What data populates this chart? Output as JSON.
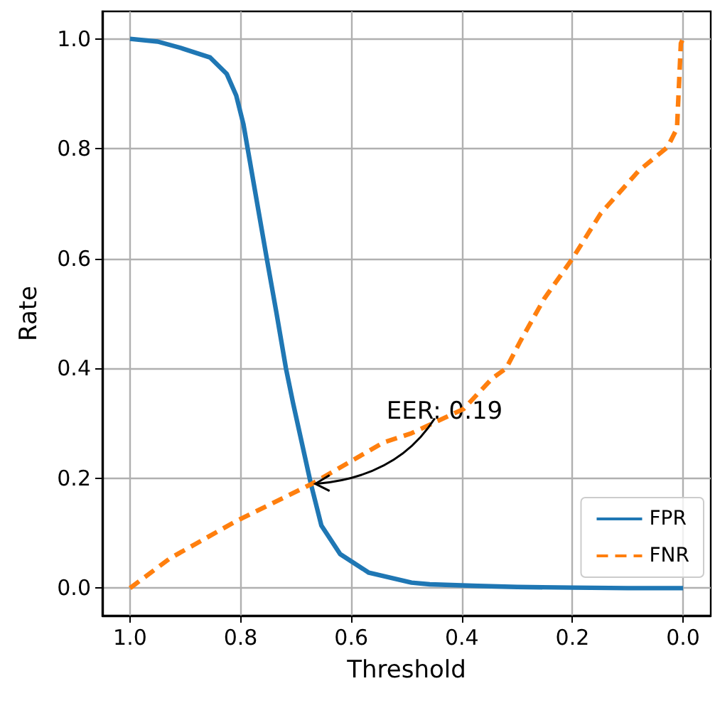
{
  "chart_data": {
    "type": "line",
    "xlabel": "Threshold",
    "ylabel": "Rate",
    "xlim": [
      1.05,
      -0.05
    ],
    "ylim": [
      -0.05,
      1.05
    ],
    "xticks": [
      {
        "value": 1,
        "label": "1.0"
      },
      {
        "value": 0.8,
        "label": "0.8"
      },
      {
        "value": 0.6,
        "label": "0.6"
      },
      {
        "value": 0.4,
        "label": "0.4"
      },
      {
        "value": 0.2,
        "label": "0.2"
      },
      {
        "value": 0,
        "label": "0.0"
      }
    ],
    "yticks": [
      {
        "value": 0,
        "label": "0.0"
      },
      {
        "value": 0.2,
        "label": "0.2"
      },
      {
        "value": 0.4,
        "label": "0.4"
      },
      {
        "value": 0.6,
        "label": "0.6"
      },
      {
        "value": 0.8,
        "label": "0.8"
      },
      {
        "value": 1,
        "label": "1.0"
      }
    ],
    "grid": true,
    "legend": "bottom right",
    "marker": "none",
    "series": [
      {
        "name": "FPR",
        "color": "#1f77b4",
        "line_style": "solid",
        "x": [
          1.0,
          0.95,
          0.91,
          0.855,
          0.825,
          0.808,
          0.795,
          0.752,
          0.735,
          0.718,
          0.705,
          0.673,
          0.654,
          0.62,
          0.568,
          0.491,
          0.458,
          0.371,
          0.3,
          0.2,
          0.1,
          0.0
        ],
        "values": [
          1.0,
          0.995,
          0.984,
          0.966,
          0.936,
          0.897,
          0.845,
          0.596,
          0.5,
          0.4,
          0.336,
          0.19,
          0.114,
          0.062,
          0.028,
          0.01,
          0.007,
          0.004,
          0.002,
          0.001,
          0.0,
          0.0
        ]
      },
      {
        "name": "FNR",
        "color": "#ff7f0e",
        "line_style": "dashed",
        "x": [
          1.0,
          0.928,
          0.808,
          0.671,
          0.542,
          0.491,
          0.397,
          0.345,
          0.32,
          0.294,
          0.251,
          0.2,
          0.149,
          0.08,
          0.028,
          0.011,
          0.004,
          0.0
        ],
        "values": [
          0.0,
          0.054,
          0.122,
          0.19,
          0.265,
          0.282,
          0.326,
          0.382,
          0.4,
          0.45,
          0.527,
          0.6,
          0.682,
          0.76,
          0.803,
          0.837,
          0.992,
          1.0
        ]
      }
    ],
    "annotations": [
      {
        "text": "EER: 0.19",
        "x": 0.67,
        "y": 0.19
      }
    ]
  }
}
